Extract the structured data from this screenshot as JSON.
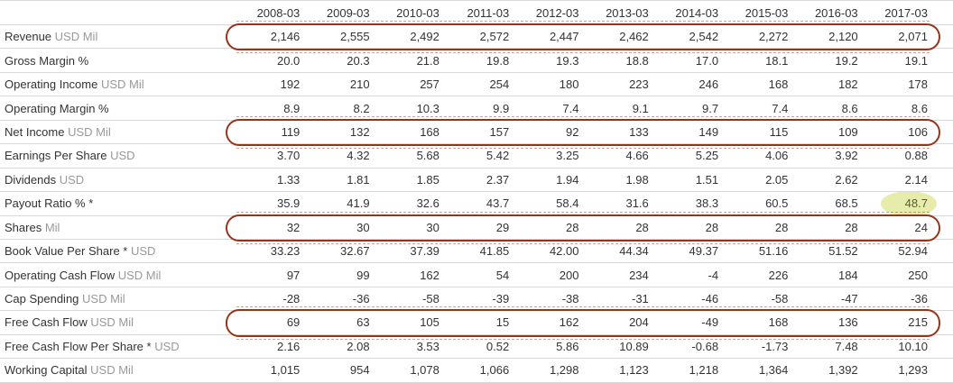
{
  "table": {
    "columns": [
      "2008-03",
      "2009-03",
      "2010-03",
      "2011-03",
      "2012-03",
      "2013-03",
      "2014-03",
      "2015-03",
      "2016-03",
      "2017-03"
    ],
    "rows": [
      {
        "label": "Revenue",
        "unit": "USD Mil",
        "values": [
          "2,146",
          "2,555",
          "2,492",
          "2,572",
          "2,447",
          "2,462",
          "2,542",
          "2,272",
          "2,120",
          "2,071"
        ]
      },
      {
        "label": "Gross Margin %",
        "unit": "",
        "values": [
          "20.0",
          "20.3",
          "21.8",
          "19.8",
          "19.3",
          "18.8",
          "17.0",
          "18.1",
          "19.2",
          "19.1"
        ]
      },
      {
        "label": "Operating Income",
        "unit": "USD Mil",
        "values": [
          "192",
          "210",
          "257",
          "254",
          "180",
          "223",
          "246",
          "168",
          "182",
          "178"
        ]
      },
      {
        "label": "Operating Margin %",
        "unit": "",
        "values": [
          "8.9",
          "8.2",
          "10.3",
          "9.9",
          "7.4",
          "9.1",
          "9.7",
          "7.4",
          "8.6",
          "8.6"
        ]
      },
      {
        "label": "Net Income",
        "unit": "USD Mil",
        "values": [
          "119",
          "132",
          "168",
          "157",
          "92",
          "133",
          "149",
          "115",
          "109",
          "106"
        ]
      },
      {
        "label": "Earnings Per Share",
        "unit": "USD",
        "values": [
          "3.70",
          "4.32",
          "5.68",
          "5.42",
          "3.25",
          "4.66",
          "5.25",
          "4.06",
          "3.92",
          "0.88"
        ]
      },
      {
        "label": "Dividends",
        "unit": "USD",
        "values": [
          "1.33",
          "1.81",
          "1.85",
          "2.37",
          "1.94",
          "1.98",
          "1.51",
          "2.05",
          "2.62",
          "2.14"
        ]
      },
      {
        "label": "Payout Ratio % *",
        "unit": "",
        "values": [
          "35.9",
          "41.9",
          "32.6",
          "43.7",
          "58.4",
          "31.6",
          "38.3",
          "60.5",
          "68.5",
          "48.7"
        ]
      },
      {
        "label": "Shares",
        "unit": "Mil",
        "values": [
          "32",
          "30",
          "30",
          "29",
          "28",
          "28",
          "28",
          "28",
          "28",
          "24"
        ]
      },
      {
        "label": "Book Value Per Share *",
        "unit": "USD",
        "values": [
          "33.23",
          "32.67",
          "37.39",
          "41.85",
          "42.00",
          "44.34",
          "49.37",
          "51.16",
          "51.52",
          "52.94"
        ]
      },
      {
        "label": "Operating Cash Flow",
        "unit": "USD Mil",
        "values": [
          "97",
          "99",
          "162",
          "54",
          "200",
          "234",
          "-4",
          "226",
          "184",
          "250"
        ]
      },
      {
        "label": "Cap Spending",
        "unit": "USD Mil",
        "values": [
          "-28",
          "-36",
          "-58",
          "-39",
          "-38",
          "-31",
          "-46",
          "-58",
          "-47",
          "-36"
        ]
      },
      {
        "label": "Free Cash Flow",
        "unit": "USD Mil",
        "values": [
          "69",
          "63",
          "105",
          "15",
          "162",
          "204",
          "-49",
          "168",
          "136",
          "215"
        ]
      },
      {
        "label": "Free Cash Flow Per Share *",
        "unit": "USD",
        "values": [
          "2.16",
          "2.08",
          "3.53",
          "0.52",
          "5.86",
          "10.89",
          "-0.68",
          "-1.73",
          "7.48",
          "10.10"
        ]
      },
      {
        "label": "Working Capital",
        "unit": "USD Mil",
        "values": [
          "1,015",
          "954",
          "1,078",
          "1,066",
          "1,298",
          "1,123",
          "1,218",
          "1,364",
          "1,392",
          "1,293"
        ]
      }
    ]
  },
  "annotations": {
    "circled_rows": [
      "Revenue",
      "Net Income",
      "Shares",
      "Free Cash Flow"
    ],
    "highlight": {
      "row": "Payout Ratio % *",
      "column": "2017-03",
      "value": "48.7"
    }
  },
  "colors": {
    "background": "#ffffff",
    "text": "#333333",
    "unit_text": "#999999",
    "gridline": "#d8d8d8",
    "circle": "#96341a",
    "highlight_fill": "#e8ecab",
    "highlight_text": "#5a5a40"
  }
}
